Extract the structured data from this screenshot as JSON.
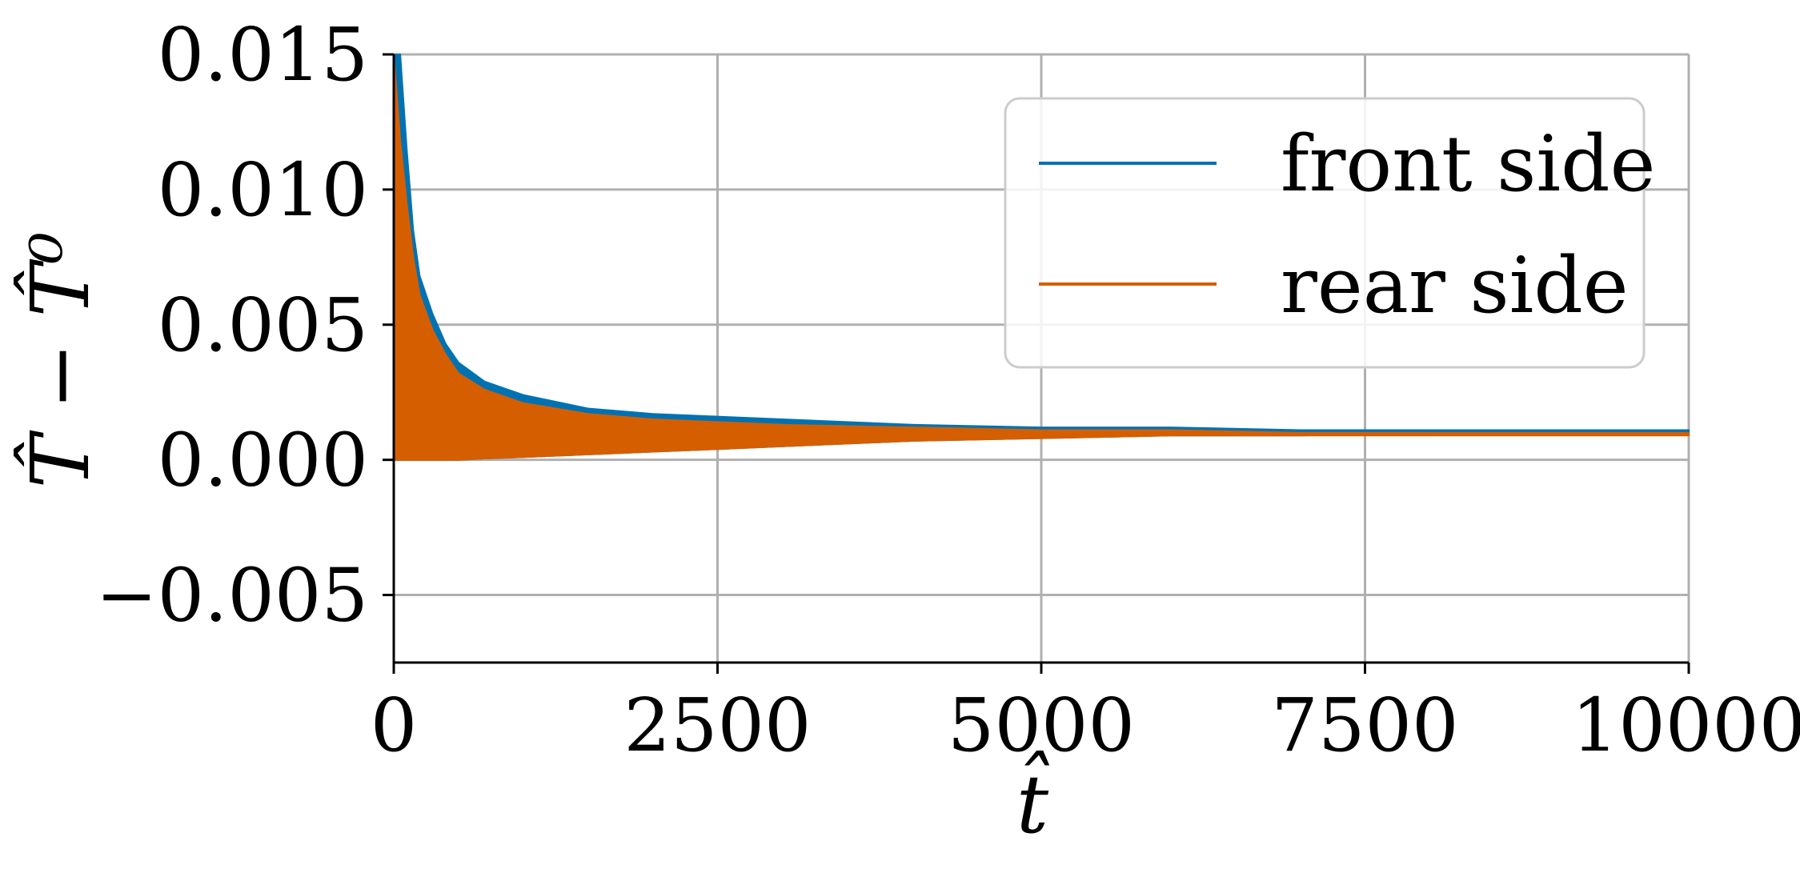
{
  "chart_data": {
    "type": "line",
    "xlabel": "t̂",
    "ylabel": "T̂ − T̂⁰",
    "xlim": [
      0,
      10000
    ],
    "ylim": [
      -0.0075,
      0.015
    ],
    "x_ticks": [
      0,
      2500,
      5000,
      7500,
      10000
    ],
    "x_tick_labels": [
      "0",
      "2500",
      "5000",
      "7500",
      "10000"
    ],
    "y_ticks": [
      -0.005,
      0.0,
      0.005,
      0.01,
      0.015
    ],
    "y_tick_labels": [
      "−0.005",
      "0.000",
      "0.005",
      "0.010",
      "0.015"
    ],
    "grid": true,
    "legend": {
      "placement": "top-right",
      "entries": [
        "front side",
        "rear side"
      ]
    },
    "colors": {
      "front": "#0072b2",
      "rear": "#d55e00",
      "grid": "#b0b0b0"
    },
    "series": [
      {
        "name": "front side",
        "x": [
          0,
          50,
          100,
          150,
          200,
          300,
          400,
          500,
          700,
          1000,
          1500,
          2000,
          2500,
          3000,
          4000,
          5000,
          6000,
          7000,
          8000,
          9000,
          10000
        ],
        "upper": [
          0.015,
          0.015,
          0.0115,
          0.0085,
          0.0068,
          0.0054,
          0.0043,
          0.0036,
          0.0029,
          0.0024,
          0.0019,
          0.0017,
          0.0016,
          0.0015,
          0.0013,
          0.0012,
          0.0012,
          0.0011,
          0.0011,
          0.0011,
          0.0011
        ],
        "lower": [
          0,
          0,
          0,
          0,
          0,
          0,
          0,
          0,
          5e-05,
          0.0001,
          0.0002,
          0.0003,
          0.0004,
          0.0005,
          0.0007,
          0.0008,
          0.0009,
          0.0009,
          0.001,
          0.001,
          0.001
        ]
      },
      {
        "name": "rear side",
        "x": [
          0,
          50,
          100,
          150,
          200,
          300,
          400,
          500,
          700,
          1000,
          1500,
          2000,
          2500,
          3000,
          4000,
          5000,
          6000,
          7000,
          8000,
          9000,
          10000
        ],
        "upper": [
          0.015,
          0.0118,
          0.0095,
          0.0075,
          0.0061,
          0.0048,
          0.0039,
          0.0032,
          0.0026,
          0.0021,
          0.0017,
          0.0015,
          0.0014,
          0.0013,
          0.0012,
          0.0011,
          0.0011,
          0.001,
          0.001,
          0.001,
          0.001
        ],
        "lower": [
          0,
          0,
          0,
          0,
          0,
          0,
          0,
          0,
          5e-05,
          0.0001,
          0.0002,
          0.0003,
          0.0004,
          0.0005,
          0.0007,
          0.0008,
          0.0009,
          0.0009,
          0.0009,
          0.0009,
          0.0009
        ]
      }
    ]
  }
}
